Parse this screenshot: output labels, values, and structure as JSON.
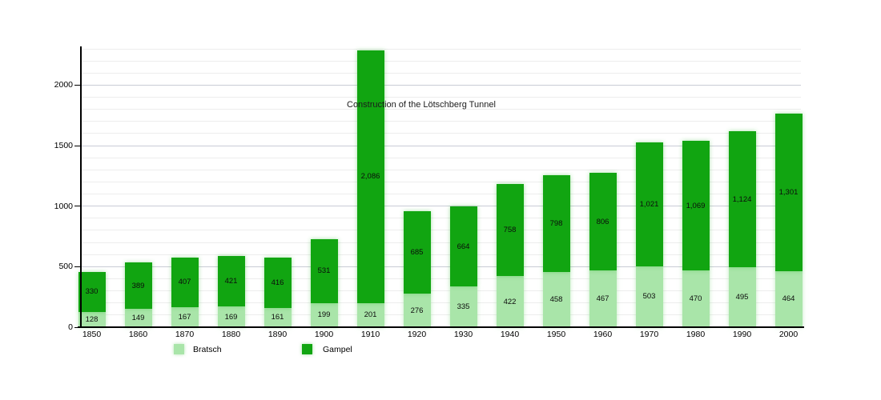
{
  "chart_data": {
    "type": "bar",
    "stacked": true,
    "title": "",
    "categories": [
      "1850",
      "1860",
      "1870",
      "1880",
      "1890",
      "1900",
      "1910",
      "1920",
      "1930",
      "1940",
      "1950",
      "1960",
      "1970",
      "1980",
      "1990",
      "2000"
    ],
    "series": [
      {
        "name": "Bratsch",
        "color": "#a9e5a9",
        "values": [
          128,
          149,
          167,
          169,
          161,
          199,
          201,
          276,
          335,
          422,
          458,
          467,
          503,
          470,
          495,
          464
        ],
        "labels": [
          "128",
          "149",
          "167",
          "169",
          "161",
          "199",
          "201",
          "276",
          "335",
          "422",
          "458",
          "467",
          "503",
          "470",
          "495",
          "464"
        ]
      },
      {
        "name": "Gampel",
        "color": "#11a511",
        "values": [
          330,
          389,
          407,
          421,
          416,
          531,
          2086,
          685,
          664,
          758,
          798,
          806,
          1021,
          1069,
          1124,
          1301
        ],
        "labels": [
          "330",
          "389",
          "407",
          "421",
          "416",
          "531",
          "2,086",
          "685",
          "664",
          "758",
          "798",
          "806",
          "1,021",
          "1,069",
          "1,124",
          "1,301"
        ]
      }
    ],
    "xlabel": "",
    "ylabel": "",
    "ylim": [
      0,
      2300
    ],
    "y_ticks": [
      "0",
      "500",
      "1000",
      "1500",
      "2000"
    ],
    "y_tick_values": [
      0,
      500,
      1000,
      1500,
      2000
    ],
    "grid": "on",
    "grid_minor_step": 100,
    "grid_major_step": 500,
    "annotation": {
      "text": "Construction of the Lötschberg Tunnel"
    },
    "legend": {
      "position": "bottom",
      "items": [
        {
          "label": "Bratsch",
          "color": "#a9e5a9"
        },
        {
          "label": "Gampel",
          "color": "#11a511"
        }
      ]
    }
  },
  "colors": {
    "grid_minor": "#ececec",
    "grid_major": "#c9ccd6",
    "axis": "#000000",
    "background": "#ffffff"
  }
}
